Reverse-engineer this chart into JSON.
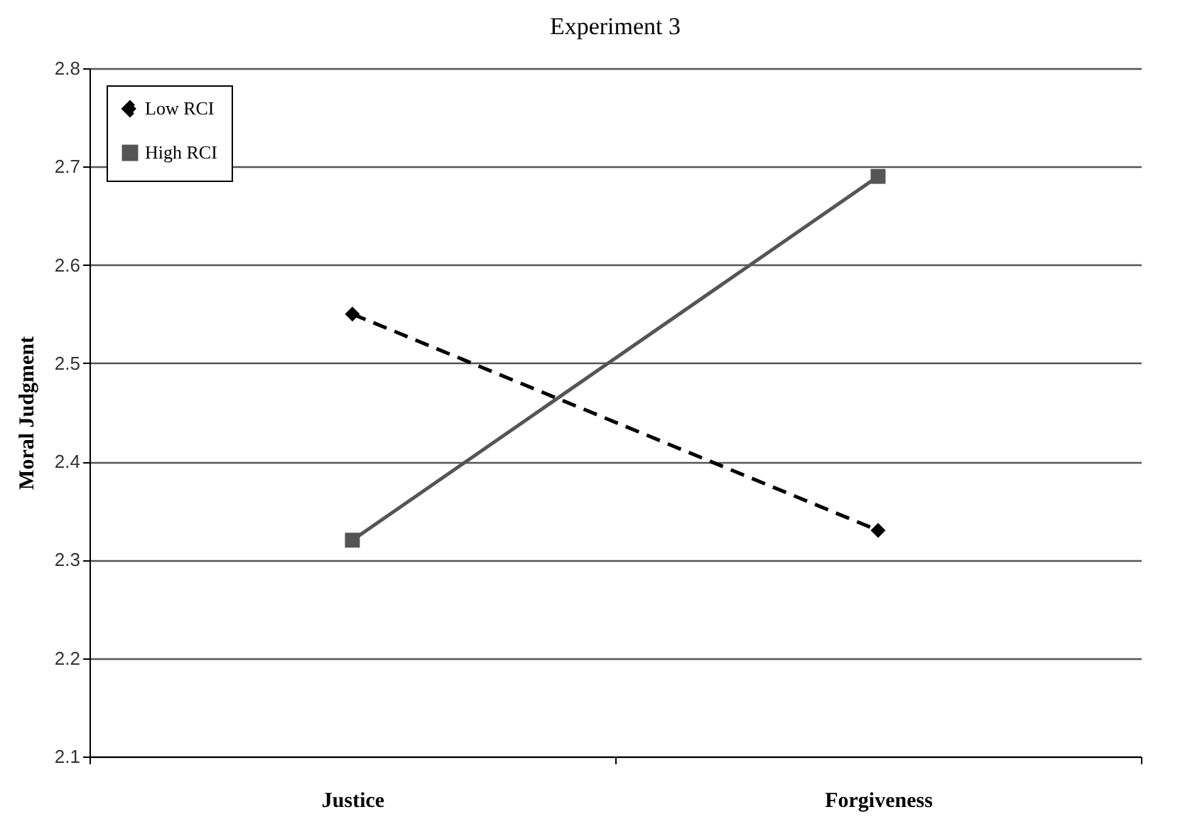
{
  "chart_data": {
    "type": "line",
    "title": "Experiment 3",
    "ylabel": "Moral Judgment",
    "categories": [
      "Justice",
      "Forgiveness"
    ],
    "series": [
      {
        "name": "Low RCI",
        "color": "#000000",
        "values": [
          2.55,
          2.33
        ],
        "marker": "diamond",
        "line_style": "dashed"
      },
      {
        "name": "High RCI",
        "color": "#555555",
        "values": [
          2.32,
          2.69
        ],
        "marker": "square",
        "line_style": "solid"
      }
    ],
    "ylim": [
      2.1,
      2.8
    ],
    "yticks": [
      2.1,
      2.2,
      2.3,
      2.4,
      2.5,
      2.6,
      2.7,
      2.8
    ],
    "grid": "y",
    "legend": "top left"
  }
}
